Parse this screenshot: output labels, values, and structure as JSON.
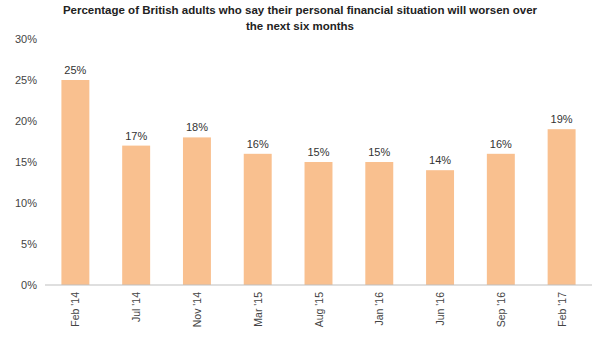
{
  "chart_data": {
    "type": "bar",
    "title": "Percentage of British adults who say their personal financial situation will worsen over the next six months",
    "categories": [
      "Feb '14",
      "Jul '14",
      "Nov '14",
      "Mar '15",
      "Aug '15",
      "Jan '16",
      "Jun '16",
      "Sep '16",
      "Feb '17"
    ],
    "values": [
      25,
      17,
      18,
      16,
      15,
      15,
      14,
      16,
      19
    ],
    "value_labels": [
      "25%",
      "17%",
      "18%",
      "16%",
      "15%",
      "15%",
      "14%",
      "16%",
      "19%"
    ],
    "color": "#f9c08f",
    "ylim": [
      0,
      30
    ],
    "yticks": [
      {
        "value": 0,
        "label": "0%"
      },
      {
        "value": 5,
        "label": "5%"
      },
      {
        "value": 10,
        "label": "10%"
      },
      {
        "value": 15,
        "label": "15%"
      },
      {
        "value": 20,
        "label": "20%"
      },
      {
        "value": 25,
        "label": "25%"
      },
      {
        "value": 30,
        "label": "30%"
      }
    ],
    "grid": false,
    "data_labels": true
  }
}
